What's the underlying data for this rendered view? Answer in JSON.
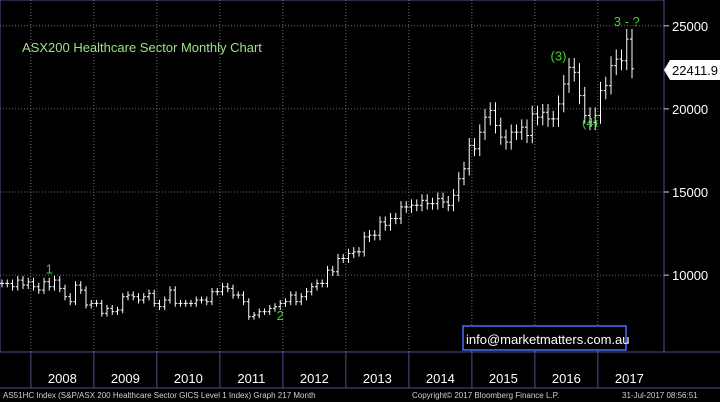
{
  "title": "ASX200 Healthcare Sector Monthly Chart",
  "last_price_label": "22411.9",
  "watermark": "info@marketmatters.com.au",
  "footer": {
    "left": "AS51HC Index (S&P/ASX 200 Healthcare Sector GICS Level 1 Index) Graph 217  Month",
    "center": "Copyright© 2017 Bloomberg Finance L.P.",
    "right": "31-Jul-2017 08:56:51"
  },
  "colors": {
    "background": "#000000",
    "plot_border": "#4a4f8c",
    "gridline": "#8a8a8a",
    "bars": "#ffffff",
    "annotation": "#39d42f",
    "title": "#9fe08f",
    "watermark_border": "#4a6cff",
    "last_price_box": "#ffffff"
  },
  "chart_data": {
    "type": "ohlc",
    "title": "ASX200 Healthcare Sector Monthly Chart",
    "frequency": "monthly",
    "x_tick_labels": [
      "2008",
      "2009",
      "2010",
      "2011",
      "2012",
      "2013",
      "2014",
      "2015",
      "2016",
      "2017"
    ],
    "y_ticks": [
      10000,
      15000,
      20000,
      25000
    ],
    "y_tick_labels": [
      "10000",
      "15000",
      "20000",
      "25000"
    ],
    "ylim": [
      4500,
      26000
    ],
    "grid": true,
    "last_price": 22411.9,
    "annotations": [
      {
        "label": "1",
        "date": "2008-04",
        "value": 10100
      },
      {
        "label": "2",
        "date": "2011-12",
        "value": 7300
      },
      {
        "label": "(3)",
        "date": "2016-05",
        "value": 22900
      },
      {
        "label": "(4)",
        "date": "2016-11",
        "value": 18900
      },
      {
        "label": "3 - ?",
        "date": "2017-06",
        "value": 25000
      }
    ],
    "series": [
      {
        "start": "2007-07",
        "closes": [
          9500,
          9500,
          9300,
          9700,
          9400,
          9600,
          9300,
          9100,
          9600,
          9300,
          9700,
          9200,
          8700,
          8400,
          9400,
          9100,
          8200,
          8300,
          8300,
          7700,
          8000,
          7800,
          7900,
          8700,
          8800,
          8700,
          8500,
          8700,
          8900,
          8300,
          8100,
          8500,
          9100,
          8300,
          8300,
          8300,
          8300,
          8500,
          8500,
          8400,
          9000,
          9000,
          9300,
          9200,
          8800,
          8800,
          8400,
          7500,
          7600,
          7800,
          7800,
          8000,
          8100,
          8300,
          8400,
          8800,
          8400,
          8700,
          9000,
          9300,
          9500,
          9500,
          10300,
          10200,
          11000,
          11000,
          11300,
          11400,
          11400,
          12300,
          12400,
          12400,
          13200,
          13000,
          13400,
          13400,
          14100,
          14100,
          14200,
          14200,
          14500,
          14300,
          14300,
          14600,
          14400,
          14200,
          14800,
          15800,
          16400,
          17800,
          17600,
          18600,
          19500,
          19900,
          19000,
          18300,
          18000,
          18600,
          18600,
          18900,
          18400,
          19700,
          19500,
          19800,
          19400,
          19400,
          20300,
          21500,
          22500,
          22200,
          20800,
          19600,
          19200,
          19600,
          21100,
          21400,
          22600,
          23000,
          22900,
          24200,
          22411.9
        ]
      }
    ]
  }
}
